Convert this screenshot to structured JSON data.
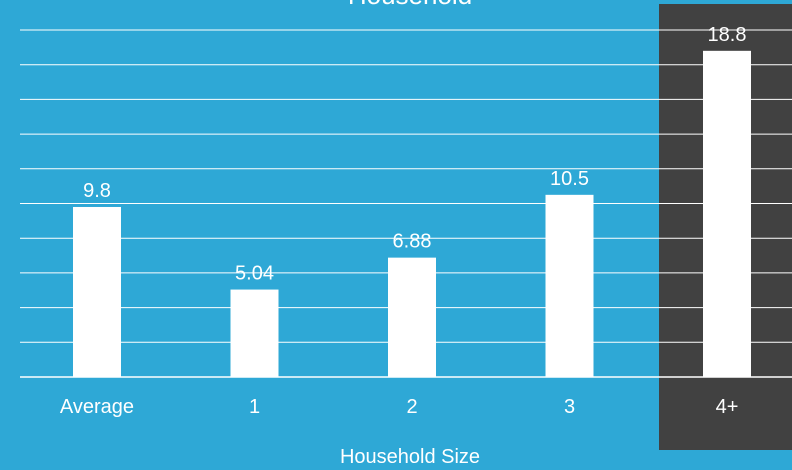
{
  "colors": {
    "background": "#2EA8D6",
    "highlight_background": "#414141",
    "bar": "#FFFFFF",
    "gridline": "#FFFFFF",
    "text": "#FFFFFF"
  },
  "chart_data": {
    "type": "bar",
    "title": "Household",
    "xlabel": "Household Size",
    "ylabel": "",
    "categories": [
      "Average",
      "1",
      "2",
      "3",
      "4+"
    ],
    "values": [
      9.8,
      5.04,
      6.88,
      10.5,
      18.8
    ],
    "value_labels": [
      "9.8",
      "5.04",
      "6.88",
      "10.5",
      "18.8"
    ],
    "ylim": [
      0,
      20
    ],
    "grid": true,
    "legend": "none",
    "highlight_category": "4+"
  }
}
